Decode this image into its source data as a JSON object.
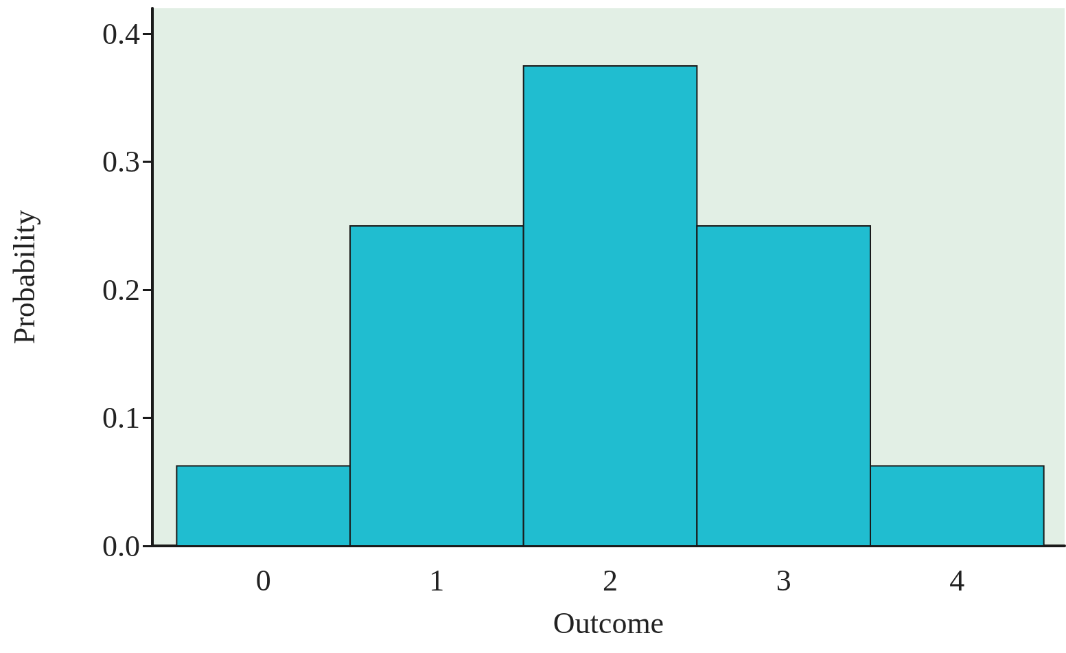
{
  "chart_data": {
    "type": "histogram",
    "xlabel": "Outcome",
    "ylabel": "Probability",
    "bins": [
      -0.5,
      0.5,
      1.5,
      2.5,
      3.5,
      4.5
    ],
    "values": [
      0.0625,
      0.25,
      0.375,
      0.25,
      0.0625
    ],
    "color": "#20bdd0",
    "xlim": [
      -0.64,
      4.62
    ],
    "xticks": [
      0,
      1,
      2,
      3,
      4
    ],
    "ylim": [
      0,
      0.42
    ],
    "yticks": [
      {
        "value": 0,
        "label": "0.0"
      },
      {
        "value": 0.1,
        "label": "0.1"
      },
      {
        "value": 0.2,
        "label": "0.2"
      },
      {
        "value": 0.3,
        "label": "0.3"
      },
      {
        "value": 0.4,
        "label": "0.4"
      }
    ],
    "grid": false
  }
}
